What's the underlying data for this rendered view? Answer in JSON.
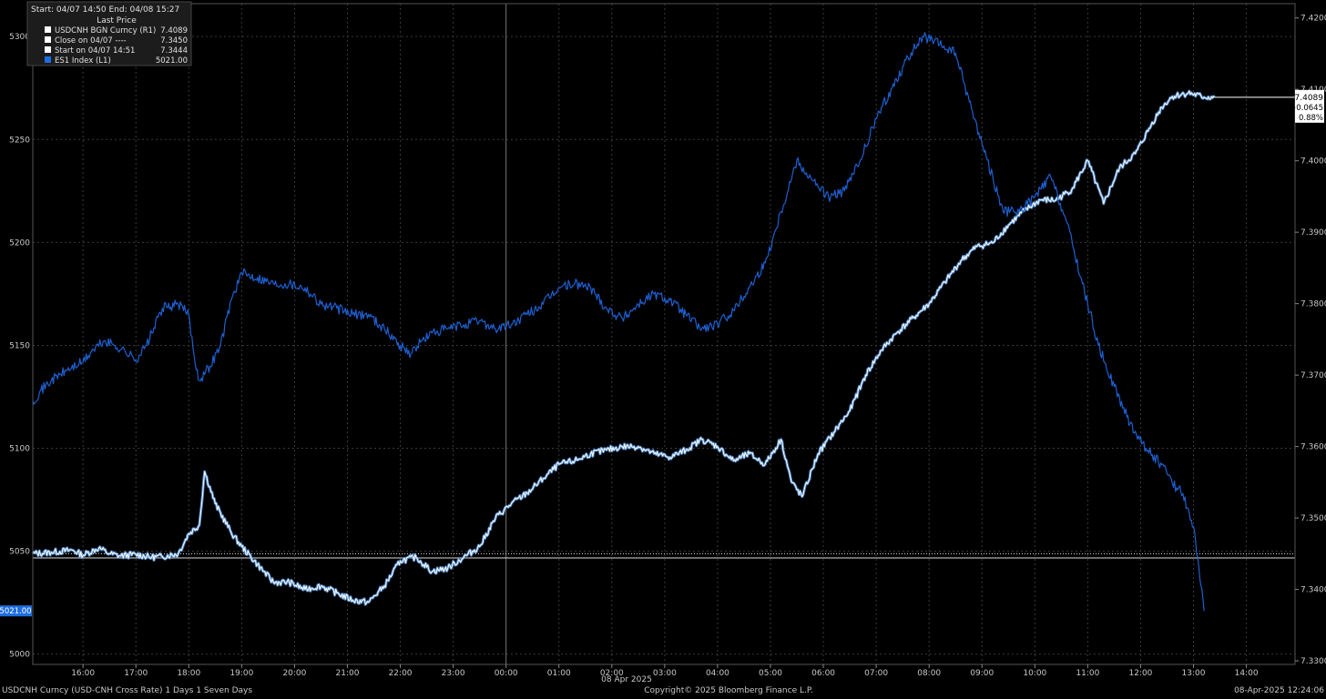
{
  "legend": {
    "header": "Start: 04/07 14:50 End: 04/08 15:27",
    "column_title": "Last Price",
    "rows": [
      {
        "label": "USDCNH BGN Curncy  (R1)",
        "value": "7.4089",
        "swatch": "#ffffff"
      },
      {
        "label": "Close on 04/07 ----",
        "value": "7.3450",
        "swatch": "#ffffff"
      },
      {
        "label": "Start on 04/07 14:51",
        "value": "7.3444",
        "swatch": "#ffffff"
      },
      {
        "label": "ES1 Index  (L1)",
        "value": "5021.00",
        "swatch": "#1e6ee0"
      }
    ]
  },
  "right_flags": {
    "last": "7.4089",
    "change": "+0.0645",
    "pct": "0.88%"
  },
  "left_flag": "5021.00",
  "date_label": "08 Apr 2025",
  "footer": {
    "left": "USDCNH Curncy (USD-CNH Cross Rate) 1 Days 1 Seven Days",
    "center": "Copyright© 2025 Bloomberg Finance L.P.",
    "right": "08-Apr-2025 12:24:06"
  },
  "colors": {
    "background": "#000000",
    "usdcnh": "#ffffff",
    "usdcnh_fill": "#5ea0e8",
    "es1": "#1e5fd0",
    "grid": "#3a3a3a",
    "axis_text": "#c8c8c8",
    "flag_blue": "#1e6ee0"
  },
  "chart_data": {
    "type": "line",
    "x_ticks": [
      "16:00",
      "17:00",
      "18:00",
      "19:00",
      "20:00",
      "21:00",
      "22:00",
      "23:00",
      "00:00",
      "01:00",
      "02:00",
      "03:00",
      "04:00",
      "05:00",
      "06:00",
      "07:00",
      "08:00",
      "09:00",
      "10:00",
      "11:00",
      "12:00",
      "13:00",
      "14:00"
    ],
    "x_range_hours": [
      15.05,
      38.92
    ],
    "left_axis": {
      "ticks": [
        "5000",
        "5050",
        "5100",
        "5150",
        "5200",
        "5250",
        "5300"
      ],
      "ylim": [
        4995,
        5316
      ]
    },
    "right_axis": {
      "ticks": [
        "7.3300",
        "7.3400",
        "7.3500",
        "7.3600",
        "7.3700",
        "7.3800",
        "7.3900",
        "7.4000",
        "7.4100",
        "7.4200"
      ],
      "ylim": [
        7.3295,
        7.422
      ]
    },
    "reference_lines": [
      {
        "axis": "right",
        "value": 7.345,
        "style": "dotted"
      },
      {
        "axis": "right",
        "value": 7.3444,
        "style": "solid"
      }
    ],
    "series": [
      {
        "name": "USDCNH BGN Curncy  (R1)",
        "axis": "right",
        "x": [
          15.05,
          15.4,
          15.8,
          16.0,
          16.3,
          16.5,
          16.7,
          17.0,
          17.3,
          17.5,
          17.8,
          18.0,
          18.2,
          18.3,
          18.5,
          18.8,
          19.0,
          19.3,
          19.6,
          19.9,
          20.2,
          20.5,
          20.8,
          21.1,
          21.4,
          21.7,
          22.0,
          22.3,
          22.6,
          22.9,
          23.2,
          23.5,
          23.8,
          24.1,
          24.4,
          24.7,
          25.0,
          25.3,
          25.6,
          25.9,
          26.2,
          26.5,
          26.8,
          27.1,
          27.4,
          27.7,
          28.0,
          28.3,
          28.6,
          28.9,
          29.2,
          29.4,
          29.6,
          29.9,
          30.2,
          30.5,
          30.8,
          31.1,
          31.4,
          31.7,
          32.0,
          32.3,
          32.6,
          32.9,
          33.2,
          33.5,
          33.8,
          34.1,
          34.4,
          34.7,
          35.0,
          35.3,
          35.6,
          35.9,
          36.2,
          36.4,
          36.6,
          36.9,
          37.2,
          37.4
        ],
        "y": [
          7.345,
          7.3452,
          7.3455,
          7.3448,
          7.3458,
          7.345,
          7.3447,
          7.3449,
          7.3445,
          7.3446,
          7.345,
          7.3478,
          7.349,
          7.3565,
          7.352,
          7.348,
          7.346,
          7.3435,
          7.341,
          7.341,
          7.34,
          7.3405,
          7.3395,
          7.3385,
          7.3382,
          7.3405,
          7.344,
          7.3445,
          7.3425,
          7.343,
          7.3445,
          7.346,
          7.35,
          7.352,
          7.3535,
          7.3555,
          7.3575,
          7.358,
          7.359,
          7.3595,
          7.36,
          7.36,
          7.359,
          7.3585,
          7.3595,
          7.361,
          7.36,
          7.358,
          7.359,
          7.3575,
          7.361,
          7.355,
          7.353,
          7.359,
          7.362,
          7.365,
          7.37,
          7.3735,
          7.376,
          7.378,
          7.38,
          7.383,
          7.386,
          7.388,
          7.3885,
          7.391,
          7.393,
          7.3945,
          7.3945,
          7.396,
          7.4,
          7.394,
          7.399,
          7.401,
          7.405,
          7.4075,
          7.409,
          7.4095,
          7.4089,
          7.4089
        ]
      },
      {
        "name": "ES1 Index  (L1)",
        "axis": "left",
        "x": [
          15.05,
          15.2,
          15.4,
          15.7,
          16.0,
          16.2,
          16.4,
          16.6,
          16.8,
          17.0,
          17.2,
          17.5,
          17.8,
          18.0,
          18.1,
          18.2,
          18.4,
          18.6,
          18.8,
          19.0,
          19.3,
          19.6,
          19.9,
          20.2,
          20.5,
          20.8,
          21.1,
          21.4,
          21.7,
          22.0,
          22.2,
          22.4,
          22.6,
          22.9,
          23.2,
          23.5,
          23.8,
          24.1,
          24.4,
          24.7,
          25.0,
          25.3,
          25.6,
          25.9,
          26.2,
          26.5,
          26.8,
          27.1,
          27.4,
          27.7,
          28.0,
          28.3,
          28.6,
          28.9,
          29.2,
          29.5,
          29.8,
          30.1,
          30.4,
          30.7,
          31.0,
          31.3,
          31.6,
          31.9,
          32.2,
          32.5,
          32.8,
          33.1,
          33.4,
          33.7,
          34.0,
          34.3,
          34.6,
          34.9,
          35.2,
          35.5,
          35.8,
          36.1,
          36.4,
          36.6,
          36.8,
          37.0,
          37.2
        ],
        "y": [
          5123,
          5128,
          5133,
          5138,
          5142,
          5148,
          5152,
          5150,
          5147,
          5143,
          5150,
          5168,
          5170,
          5165,
          5145,
          5133,
          5140,
          5150,
          5172,
          5185,
          5183,
          5180,
          5180,
          5178,
          5170,
          5168,
          5165,
          5165,
          5158,
          5150,
          5146,
          5152,
          5156,
          5158,
          5160,
          5162,
          5158,
          5160,
          5165,
          5170,
          5178,
          5180,
          5178,
          5168,
          5163,
          5170,
          5175,
          5172,
          5165,
          5158,
          5160,
          5167,
          5178,
          5190,
          5215,
          5240,
          5230,
          5222,
          5225,
          5240,
          5260,
          5275,
          5290,
          5300,
          5296,
          5292,
          5265,
          5240,
          5215,
          5215,
          5222,
          5232,
          5210,
          5180,
          5150,
          5130,
          5112,
          5100,
          5092,
          5083,
          5078,
          5062,
          5021
        ]
      }
    ]
  }
}
